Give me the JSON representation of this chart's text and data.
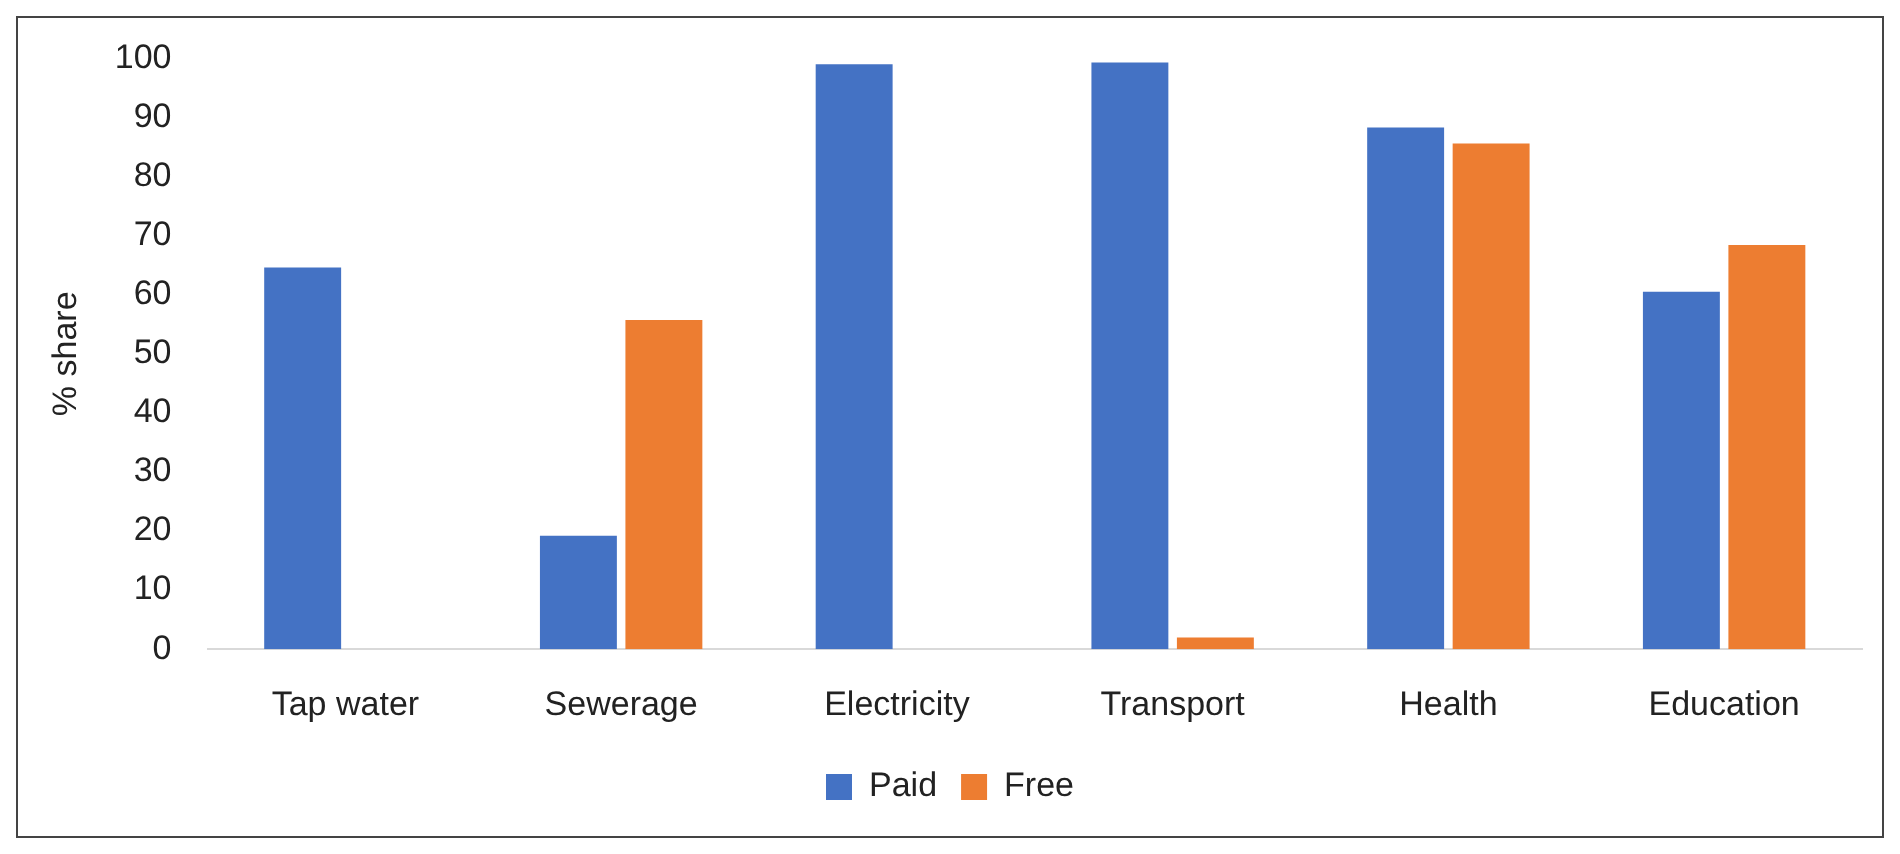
{
  "chart_data": {
    "type": "bar",
    "ylabel": "% share",
    "categories": [
      "Tap water",
      "Sewerage",
      "Electricity",
      "Transport",
      "Health",
      "Education"
    ],
    "series": [
      {
        "name": "Paid",
        "color": "#4472c4",
        "values": [
          64.6,
          19.2,
          99.0,
          99.3,
          88.3,
          60.5
        ]
      },
      {
        "name": "Free",
        "color": "#ed7d31",
        "values": [
          0,
          55.7,
          0,
          2,
          85.6,
          68.4
        ]
      }
    ],
    "ylim": [
      0,
      100
    ],
    "yticks": [
      0,
      10,
      20,
      30,
      40,
      50,
      60,
      70,
      80,
      90,
      100
    ],
    "grid": false,
    "legend": "bottom"
  }
}
